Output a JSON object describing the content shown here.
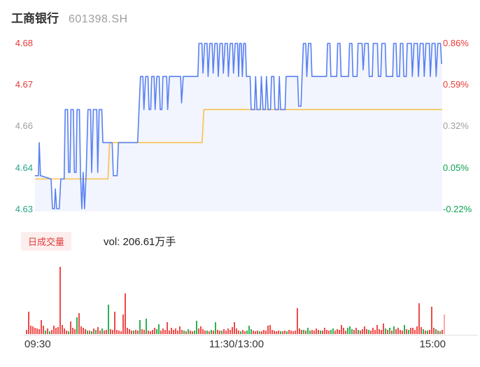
{
  "header": {
    "title": "工商银行",
    "code": "601398.SH"
  },
  "volume_header": {
    "badge": "日成交量",
    "vol_text": "vol: 206.61万手"
  },
  "colors": {
    "price_line": "#5880f2",
    "avg_line": "#f7c14b",
    "area_fill": "rgba(88,128,242,0.08)",
    "up": "#e83a35",
    "down_left": "#25a583",
    "down_right": "#0ca050",
    "neutral": "#9e9e9e",
    "vol_up": "#ef4a48",
    "vol_down": "#2cb14e",
    "vol_current": "#f8a9a8",
    "axis_line": "#e0e0e0"
  },
  "chart_data": {
    "type": "line+bar",
    "title": "工商银行 601398.SH 分时走势",
    "prev_close": 4.64,
    "price_ylim": [
      4.63,
      4.68
    ],
    "pct_ylim": [
      -0.22,
      0.86
    ],
    "x_range_minutes": [
      0,
      240
    ],
    "grid": false,
    "left_axis_labels": [
      {
        "text": "4.68",
        "color": "up"
      },
      {
        "text": "4.67",
        "color": "up"
      },
      {
        "text": "4.66",
        "color": "neutral"
      },
      {
        "text": "4.64",
        "color": "down_left"
      },
      {
        "text": "4.63",
        "color": "down_left"
      }
    ],
    "right_axis_labels": [
      {
        "text": "0.86%",
        "color": "up"
      },
      {
        "text": "0.59%",
        "color": "up"
      },
      {
        "text": "0.32%",
        "color": "neutral"
      },
      {
        "text": "0.05%",
        "color": "down_right"
      },
      {
        "text": "-0.22%",
        "color": "down_right"
      }
    ],
    "time_labels": [
      "09:30",
      "11:30/13:00",
      "15:00"
    ],
    "series": [
      {
        "name": "price",
        "type": "line",
        "points": [
          [
            0,
            4.64
          ],
          [
            2,
            4.64
          ],
          [
            2.5,
            4.65
          ],
          [
            3.2,
            4.64
          ],
          [
            9.5,
            4.639
          ],
          [
            10.3,
            4.63
          ],
          [
            11.5,
            4.63
          ],
          [
            12,
            4.636
          ],
          [
            12.8,
            4.63
          ],
          [
            14.3,
            4.63
          ],
          [
            15.2,
            4.639
          ],
          [
            17.2,
            4.639
          ],
          [
            17.8,
            4.66
          ],
          [
            19.2,
            4.66
          ],
          [
            19.8,
            4.641
          ],
          [
            20.6,
            4.641
          ],
          [
            21.2,
            4.66
          ],
          [
            22.6,
            4.66
          ],
          [
            23.2,
            4.641
          ],
          [
            24.2,
            4.641
          ],
          [
            24.8,
            4.66
          ],
          [
            26.2,
            4.66
          ],
          [
            26.8,
            4.641
          ],
          [
            27.6,
            4.63
          ],
          [
            28.4,
            4.641
          ],
          [
            29.2,
            4.63
          ],
          [
            30.2,
            4.641
          ],
          [
            31.2,
            4.66
          ],
          [
            32.8,
            4.66
          ],
          [
            33.4,
            4.641
          ],
          [
            34.4,
            4.66
          ],
          [
            36.4,
            4.66
          ],
          [
            37,
            4.641
          ],
          [
            37.8,
            4.66
          ],
          [
            39.4,
            4.66
          ],
          [
            40,
            4.65
          ],
          [
            45.5,
            4.65
          ],
          [
            46.2,
            4.64
          ],
          [
            48.4,
            4.64
          ],
          [
            49.2,
            4.65
          ],
          [
            60.5,
            4.65
          ],
          [
            61.5,
            4.662
          ],
          [
            62.2,
            4.67
          ],
          [
            63.6,
            4.67
          ],
          [
            64.2,
            4.66
          ],
          [
            65.2,
            4.67
          ],
          [
            66.6,
            4.67
          ],
          [
            67.2,
            4.66
          ],
          [
            68.2,
            4.66
          ],
          [
            68.8,
            4.67
          ],
          [
            70.2,
            4.67
          ],
          [
            70.8,
            4.66
          ],
          [
            71.8,
            4.67
          ],
          [
            73.2,
            4.67
          ],
          [
            73.8,
            4.66
          ],
          [
            74.8,
            4.66
          ],
          [
            75.4,
            4.67
          ],
          [
            77.6,
            4.67
          ],
          [
            78.2,
            4.66
          ],
          [
            79.2,
            4.67
          ],
          [
            85.8,
            4.67
          ],
          [
            86.4,
            4.662
          ],
          [
            87.4,
            4.67
          ],
          [
            96,
            4.67
          ],
          [
            96.6,
            4.68
          ],
          [
            98.4,
            4.68
          ],
          [
            99,
            4.671
          ],
          [
            100,
            4.68
          ],
          [
            101.4,
            4.68
          ],
          [
            102,
            4.67
          ],
          [
            103,
            4.68
          ],
          [
            104.4,
            4.68
          ],
          [
            105,
            4.671
          ],
          [
            106,
            4.68
          ],
          [
            107.4,
            4.68
          ],
          [
            108,
            4.67
          ],
          [
            109,
            4.68
          ],
          [
            110.4,
            4.68
          ],
          [
            111,
            4.671
          ],
          [
            112,
            4.68
          ],
          [
            113.4,
            4.68
          ],
          [
            114,
            4.67
          ],
          [
            115,
            4.68
          ],
          [
            116.4,
            4.68
          ],
          [
            117,
            4.671
          ],
          [
            118,
            4.68
          ],
          [
            119.4,
            4.68
          ],
          [
            120,
            4.67
          ],
          [
            120.6,
            4.68
          ],
          [
            121.6,
            4.68
          ],
          [
            122.2,
            4.67
          ],
          [
            123,
            4.68
          ],
          [
            124,
            4.68
          ],
          [
            124.6,
            4.67
          ],
          [
            126.8,
            4.67
          ],
          [
            127.4,
            4.66
          ],
          [
            129.4,
            4.66
          ],
          [
            130,
            4.67
          ],
          [
            130.8,
            4.66
          ],
          [
            132.8,
            4.66
          ],
          [
            133.4,
            4.67
          ],
          [
            134.4,
            4.66
          ],
          [
            135.8,
            4.66
          ],
          [
            136.4,
            4.67
          ],
          [
            137.4,
            4.66
          ],
          [
            138.8,
            4.66
          ],
          [
            139.4,
            4.67
          ],
          [
            140.8,
            4.67
          ],
          [
            141.4,
            4.66
          ],
          [
            143.4,
            4.66
          ],
          [
            144,
            4.67
          ],
          [
            144.8,
            4.66
          ],
          [
            147.4,
            4.66
          ],
          [
            148,
            4.67
          ],
          [
            154.8,
            4.67
          ],
          [
            155.4,
            4.661
          ],
          [
            156.8,
            4.661
          ],
          [
            157.4,
            4.67
          ],
          [
            158.2,
            4.68
          ],
          [
            159.6,
            4.68
          ],
          [
            160.2,
            4.67
          ],
          [
            161.2,
            4.68
          ],
          [
            162.6,
            4.68
          ],
          [
            163.2,
            4.67
          ],
          [
            171.8,
            4.67
          ],
          [
            172.4,
            4.68
          ],
          [
            173.8,
            4.68
          ],
          [
            174.4,
            4.67
          ],
          [
            177.8,
            4.67
          ],
          [
            178.4,
            4.68
          ],
          [
            179.8,
            4.68
          ],
          [
            180.4,
            4.67
          ],
          [
            184.8,
            4.67
          ],
          [
            185.4,
            4.68
          ],
          [
            186.8,
            4.68
          ],
          [
            187.4,
            4.67
          ],
          [
            189.8,
            4.67
          ],
          [
            190.4,
            4.68
          ],
          [
            192.8,
            4.68
          ],
          [
            193.4,
            4.672
          ],
          [
            194.4,
            4.68
          ],
          [
            196.4,
            4.68
          ],
          [
            197,
            4.67
          ],
          [
            198.8,
            4.67
          ],
          [
            199.4,
            4.68
          ],
          [
            201.8,
            4.68
          ],
          [
            202.4,
            4.67
          ],
          [
            203.8,
            4.67
          ],
          [
            204.4,
            4.68
          ],
          [
            206.4,
            4.68
          ],
          [
            207,
            4.67
          ],
          [
            210.8,
            4.67
          ],
          [
            211.4,
            4.68
          ],
          [
            212.8,
            4.68
          ],
          [
            213.4,
            4.67
          ],
          [
            214.8,
            4.67
          ],
          [
            215.4,
            4.68
          ],
          [
            216.8,
            4.68
          ],
          [
            217.4,
            4.67
          ],
          [
            218.8,
            4.67
          ],
          [
            219.4,
            4.68
          ],
          [
            221.8,
            4.68
          ],
          [
            222.4,
            4.67
          ],
          [
            223.4,
            4.68
          ],
          [
            225.4,
            4.68
          ],
          [
            226,
            4.67
          ],
          [
            227,
            4.68
          ],
          [
            228.8,
            4.68
          ],
          [
            229.4,
            4.67
          ],
          [
            230.4,
            4.68
          ],
          [
            232.4,
            4.68
          ],
          [
            233,
            4.67
          ],
          [
            234,
            4.68
          ],
          [
            235.8,
            4.68
          ],
          [
            236.4,
            4.67
          ],
          [
            237.4,
            4.68
          ],
          [
            239,
            4.68
          ],
          [
            239.6,
            4.674
          ],
          [
            240,
            4.674
          ]
        ]
      },
      {
        "name": "average",
        "type": "line",
        "points": [
          [
            0,
            4.639
          ],
          [
            43,
            4.639
          ],
          [
            44,
            4.65
          ],
          [
            98.5,
            4.65
          ],
          [
            99.5,
            4.66
          ],
          [
            240,
            4.66
          ]
        ]
      },
      {
        "name": "volume",
        "type": "bar",
        "note": "signed px heights: positive=up(red), negative=down(green), one bar per minute-ish",
        "values": [
          6,
          32,
          12,
          11,
          9,
          8,
          7,
          20,
          12,
          -5,
          8,
          -4,
          6,
          12,
          9,
          10,
          96,
          13,
          8,
          5,
          -4,
          18,
          9,
          7,
          -24,
          30,
          11,
          9,
          7,
          -5,
          5,
          -4,
          8,
          -6,
          10,
          5,
          -8,
          5,
          6,
          -42,
          7,
          6,
          32,
          6,
          5,
          4,
          28,
          58,
          9,
          7,
          5,
          -5,
          6,
          5,
          -20,
          7,
          6,
          -22,
          5,
          4,
          6,
          9,
          -7,
          -14,
          5,
          8,
          6,
          17,
          5,
          9,
          6,
          8,
          5,
          11,
          6,
          -5,
          4,
          -7,
          5,
          4,
          -5,
          -19,
          8,
          11,
          7,
          5,
          -5,
          4,
          -6,
          5,
          -17,
          6,
          5,
          -5,
          7,
          5,
          8,
          6,
          10,
          17,
          8,
          5,
          -4,
          6,
          4,
          -5,
          -12,
          -7,
          5,
          4,
          5,
          -4,
          4,
          6,
          5,
          12,
          13,
          6,
          5,
          4,
          5,
          -4,
          4,
          5,
          -4,
          6,
          5,
          4,
          5,
          37,
          8,
          6,
          -6,
          5,
          -9,
          -5,
          6,
          5,
          8,
          6,
          -5,
          5,
          9,
          6,
          5,
          -6,
          -8,
          5,
          7,
          6,
          13,
          9,
          5,
          -9,
          -11,
          -7,
          6,
          9,
          -6,
          5,
          7,
          11,
          7,
          -6,
          5,
          9,
          6,
          13,
          7,
          6,
          15,
          -8,
          6,
          -9,
          5,
          -11,
          7,
          9,
          6,
          5,
          -13,
          7,
          -6,
          9,
          9,
          6,
          11,
          44,
          10,
          -7,
          5,
          -5,
          6,
          39,
          9,
          -7,
          5,
          -4,
          6
        ],
        "current_bar_height": 28
      }
    ]
  }
}
